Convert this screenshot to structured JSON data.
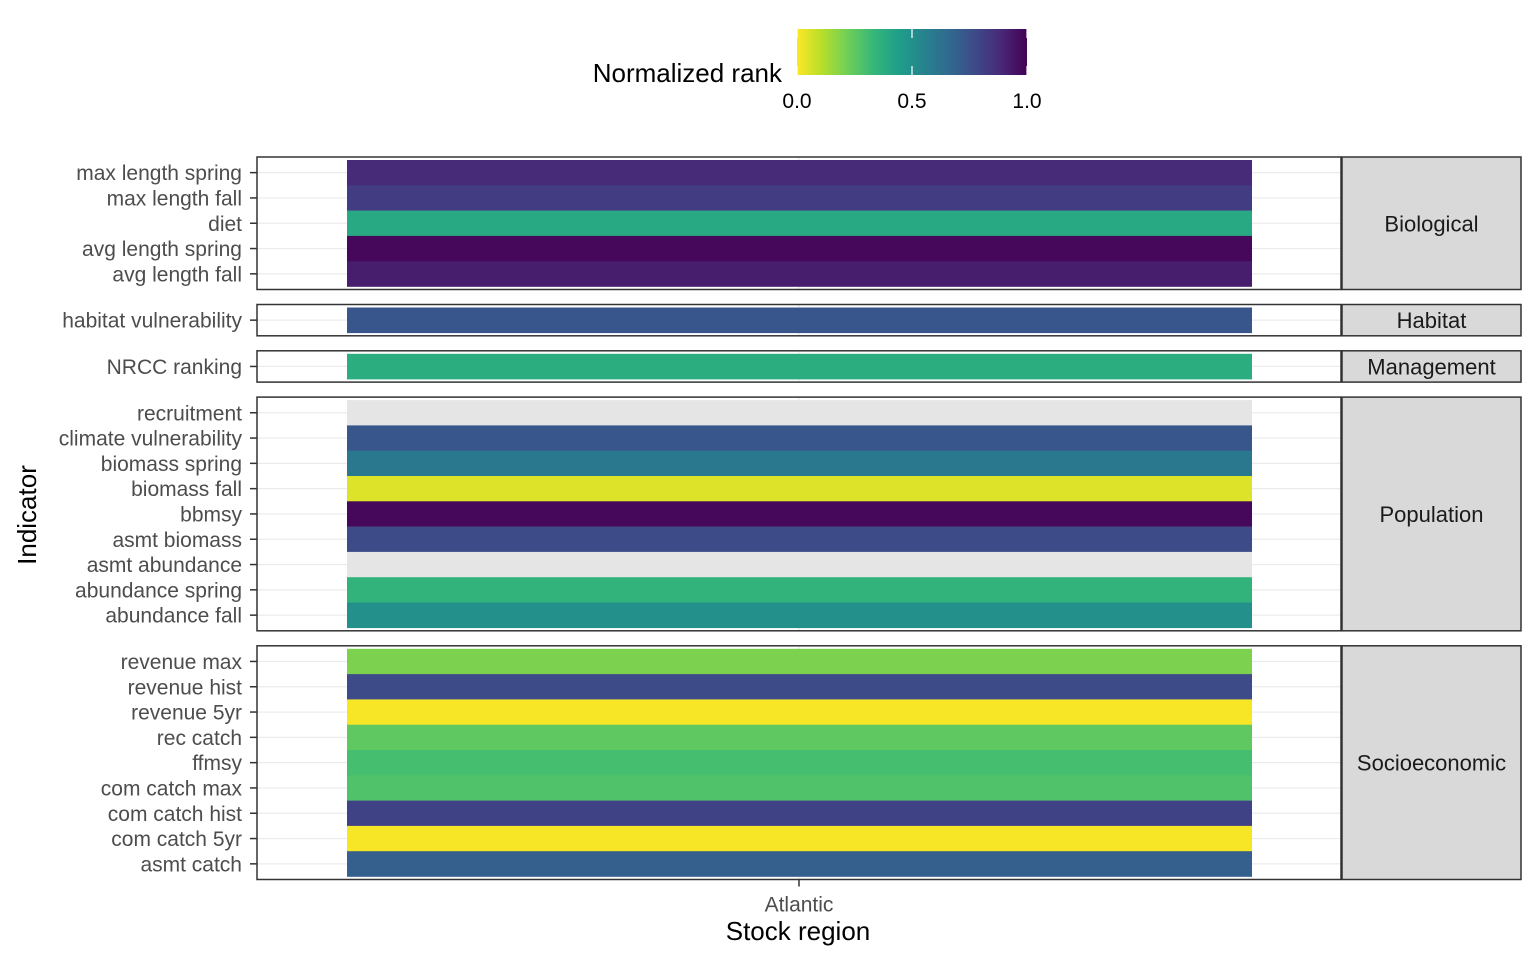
{
  "chart_data": {
    "type": "heatmap",
    "legend": {
      "title": "Normalized rank",
      "ticks": [
        "0.0",
        "0.5",
        "1.0"
      ],
      "colormap": "viridis (reversed)",
      "low_color": "#fde725",
      "high_color": "#440154",
      "placement": "top"
    },
    "xlabel": "Stock region",
    "ylabel": "Indicator",
    "x_categories": [
      "Atlantic"
    ],
    "na_color": "#e5e5e5",
    "grid": true,
    "panels": [
      {
        "name": "Biological",
        "rows": [
          {
            "label": "max length spring",
            "value": 0.88
          },
          {
            "label": "max length fall",
            "value": 0.82
          },
          {
            "label": "diet",
            "value": 0.4
          },
          {
            "label": "avg length spring",
            "value": 0.98
          },
          {
            "label": "avg length fall",
            "value": 0.92
          }
        ]
      },
      {
        "name": "Habitat",
        "rows": [
          {
            "label": "habitat vulnerability",
            "value": 0.73
          }
        ]
      },
      {
        "name": "Management",
        "rows": [
          {
            "label": "NRCC ranking",
            "value": 0.38
          }
        ]
      },
      {
        "name": "Population",
        "rows": [
          {
            "label": "recruitment",
            "value": null
          },
          {
            "label": "climate vulnerability",
            "value": 0.73
          },
          {
            "label": "biomass spring",
            "value": 0.6
          },
          {
            "label": "biomass fall",
            "value": 0.05
          },
          {
            "label": "bbmsy",
            "value": 0.98
          },
          {
            "label": "asmt biomass",
            "value": 0.77
          },
          {
            "label": "asmt abundance",
            "value": null
          },
          {
            "label": "abundance spring",
            "value": 0.35
          },
          {
            "label": "abundance fall",
            "value": 0.5
          }
        ]
      },
      {
        "name": "Socioeconomic",
        "rows": [
          {
            "label": "revenue max",
            "value": 0.2
          },
          {
            "label": "revenue hist",
            "value": 0.77
          },
          {
            "label": "revenue 5yr",
            "value": 0.01
          },
          {
            "label": "rec catch",
            "value": 0.25
          },
          {
            "label": "ffmsy",
            "value": 0.3
          },
          {
            "label": "com catch max",
            "value": 0.28
          },
          {
            "label": "com catch hist",
            "value": 0.8
          },
          {
            "label": "com catch 5yr",
            "value": 0.01
          },
          {
            "label": "asmt catch",
            "value": 0.7
          }
        ]
      }
    ]
  }
}
